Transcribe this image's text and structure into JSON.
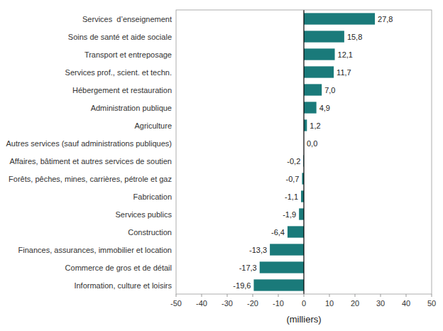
{
  "chart_data": {
    "type": "bar",
    "orientation": "horizontal",
    "categories": [
      "Information, culture et loisirs",
      "Commerce de gros et de détail",
      "Finances, assurances, immobilier et location",
      "Construction",
      "Services publics",
      "Fabrication",
      "Forêts, pêches, mines, carrières, pétrole et gaz",
      "Affaires, bâtiment et autres services de soutien",
      "Autres services (sauf administrations publiques)",
      "Agriculture",
      "Administration publique",
      "Hébergement et restauration",
      "Services prof., scient. et techn.",
      "Transport et entreposage",
      "Soins de santé et aide sociale",
      "Services  d’enseignement"
    ],
    "values": [
      -19.6,
      -17.3,
      -13.3,
      -6.4,
      -1.9,
      -1.1,
      -0.7,
      -0.2,
      0.0,
      1.2,
      4.9,
      7.0,
      11.7,
      12.1,
      15.8,
      27.8
    ],
    "value_labels": [
      "-19,6",
      "-17,3",
      "-13,3",
      "-6,4",
      "-1,9",
      "-1,1",
      "-0,7",
      "-0,2",
      "0,0",
      "1,2",
      "4,9",
      "7,0",
      "11,7",
      "12,1",
      "15,8",
      "27,8"
    ],
    "data_labels": true,
    "color": "#1a7a7a",
    "xlabel": "(milliers)",
    "xlim": [
      -50,
      50
    ],
    "xticks": [
      -50,
      -40,
      -30,
      -20,
      -10,
      0,
      10,
      20,
      30,
      40,
      50
    ],
    "grid": false
  }
}
